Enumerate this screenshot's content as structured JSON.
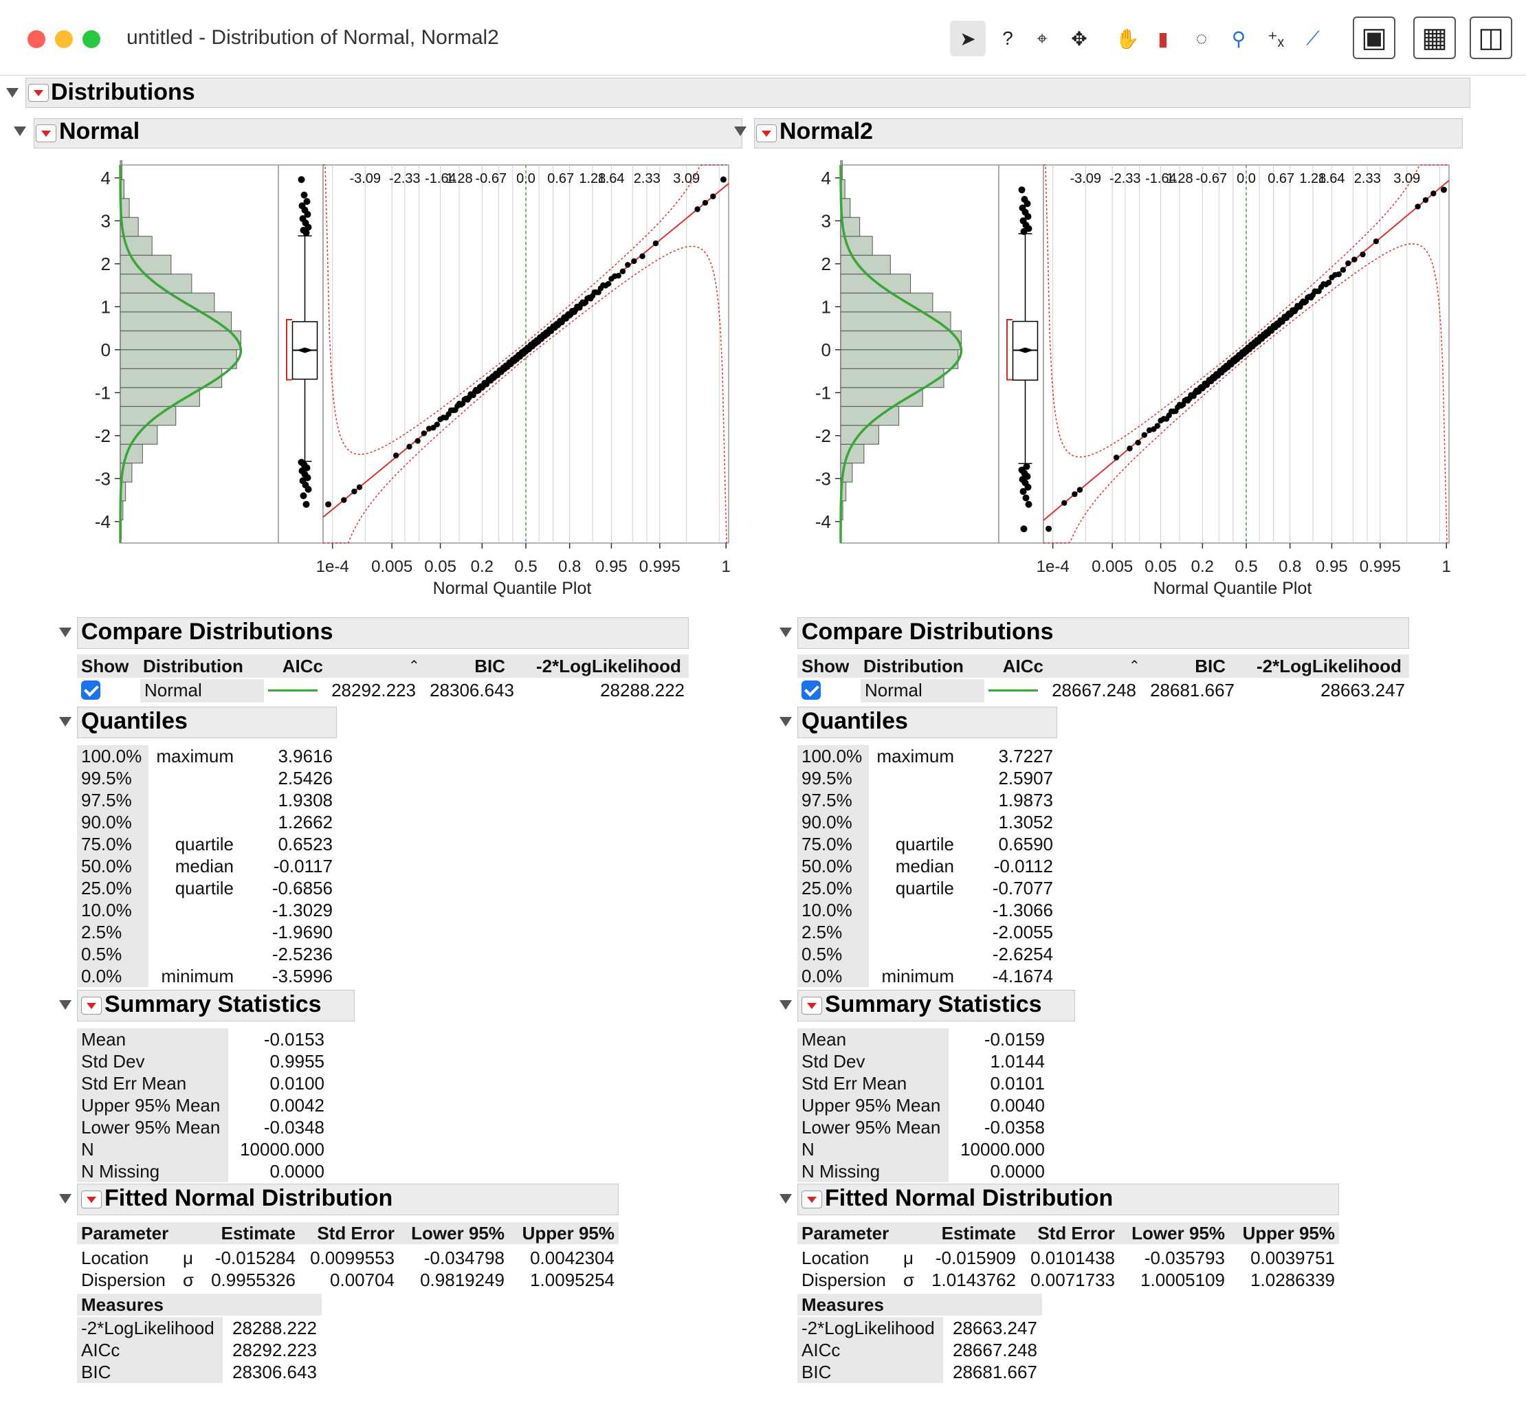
{
  "window": {
    "title": "untitled - Distribution of Normal, Normal2",
    "tools": [
      "arrow-icon",
      "help-icon",
      "crosshair-icon",
      "move-icon",
      "hand-icon",
      "brush-icon",
      "lasso-icon",
      "magnifier-icon",
      "annotate-icon",
      "ruler-icon",
      "jmp-home-icon",
      "data-table-icon",
      "layout-icon"
    ]
  },
  "distributions": {
    "title": "Distributions",
    "panels": [
      {
        "title": "Normal",
        "chart_data": {
          "type": "scatter",
          "title": "",
          "xlabel": "Normal Quantile Plot",
          "ylabel": "",
          "ylim": [
            -4.5,
            4.3
          ],
          "y_ticks": [
            "4",
            "3",
            "2",
            "1",
            "0",
            "-1",
            "-2",
            "-3",
            "-4"
          ],
          "x_bottom_ticks": [
            "1e-4",
            "0.005",
            "0.05",
            "0.2",
            "0.5",
            "0.8",
            "0.95",
            "0.995",
            "1"
          ],
          "x_top_ticks": [
            "-3.09",
            "-2.33",
            "-1.64",
            "1.28",
            "-0.67",
            "0.0",
            "0.67",
            "1.28",
            "1.64",
            "2.33",
            "3.09"
          ],
          "mean": -0.0153,
          "std_dev": 0.9955,
          "box": {
            "min": -2.6,
            "q1": -0.6856,
            "median": -0.0117,
            "q3": 0.6523,
            "max": 2.65
          },
          "outliers": [
            3.96,
            3.6,
            3.45,
            3.35,
            3.25,
            3.15,
            3.05,
            2.95,
            2.85,
            2.78,
            2.72,
            -2.62,
            -2.68,
            -2.75,
            -2.82,
            -2.9,
            -2.98,
            -3.05,
            -3.15,
            -3.25,
            -3.4,
            -3.6
          ],
          "histogram": [
            0.02,
            0.05,
            0.1,
            0.22,
            0.42,
            0.7,
            1.05,
            1.5,
            1.92,
            2.2,
            2.28,
            2.1,
            1.78,
            1.35,
            0.96,
            0.6,
            0.34,
            0.17,
            0.07,
            0.03
          ],
          "qq_range": [
            -3.5996,
            3.9616
          ]
        },
        "compare": {
          "title": "Compare Distributions",
          "headers": [
            "Show",
            "Distribution",
            "AICc",
            "BIC",
            "-2*LogLikelihood"
          ],
          "row": {
            "distribution": "Normal",
            "aicc": "28292.223",
            "bic": "28306.643",
            "loglik": "28288.222"
          }
        },
        "quantiles": {
          "title": "Quantiles",
          "rows": [
            [
              "100.0%",
              "maximum",
              "3.9616"
            ],
            [
              "99.5%",
              "",
              "2.5426"
            ],
            [
              "97.5%",
              "",
              "1.9308"
            ],
            [
              "90.0%",
              "",
              "1.2662"
            ],
            [
              "75.0%",
              "quartile",
              "0.6523"
            ],
            [
              "50.0%",
              "median",
              "-0.0117"
            ],
            [
              "25.0%",
              "quartile",
              "-0.6856"
            ],
            [
              "10.0%",
              "",
              "-1.3029"
            ],
            [
              "2.5%",
              "",
              "-1.9690"
            ],
            [
              "0.5%",
              "",
              "-2.5236"
            ],
            [
              "0.0%",
              "minimum",
              "-3.5996"
            ]
          ]
        },
        "summary": {
          "title": "Summary Statistics",
          "rows": [
            [
              "Mean",
              "-0.0153"
            ],
            [
              "Std Dev",
              "0.9955"
            ],
            [
              "Std Err Mean",
              "0.0100"
            ],
            [
              "Upper 95% Mean",
              "0.0042"
            ],
            [
              "Lower 95% Mean",
              "-0.0348"
            ],
            [
              "N",
              "10000.000"
            ],
            [
              "N Missing",
              "0.0000"
            ]
          ]
        },
        "fitted": {
          "title": "Fitted Normal Distribution",
          "headers": [
            "Parameter",
            "Estimate",
            "Std Error",
            "Lower 95%",
            "Upper 95%"
          ],
          "rows": [
            [
              "Location",
              "μ",
              "-0.015284",
              "0.0099553",
              "-0.034798",
              "0.0042304"
            ],
            [
              "Dispersion",
              "σ",
              "0.9955326",
              "0.00704",
              "0.9819249",
              "1.0095254"
            ]
          ],
          "measures_title": "Measures",
          "measures": [
            [
              "-2*LogLikelihood",
              "28288.222"
            ],
            [
              "AICc",
              "28292.223"
            ],
            [
              "BIC",
              "28306.643"
            ]
          ]
        }
      },
      {
        "title": "Normal2",
        "chart_data": {
          "type": "scatter",
          "title": "",
          "xlabel": "Normal Quantile Plot",
          "ylabel": "",
          "ylim": [
            -4.5,
            4.3
          ],
          "y_ticks": [
            "4",
            "3",
            "2",
            "1",
            "0",
            "-1",
            "-2",
            "-3",
            "-4"
          ],
          "x_bottom_ticks": [
            "1e-4",
            "0.005",
            "0.05",
            "0.2",
            "0.5",
            "0.8",
            "0.95",
            "0.995",
            "1"
          ],
          "x_top_ticks": [
            "-3.09",
            "-2.33",
            "-1.64",
            "1.28",
            "-0.67",
            "0.0",
            "0.67",
            "1.28",
            "1.64",
            "2.33",
            "3.09"
          ],
          "mean": -0.0159,
          "std_dev": 1.0144,
          "box": {
            "min": -2.65,
            "q1": -0.7077,
            "median": -0.0112,
            "q3": 0.659,
            "max": 2.7
          },
          "outliers": [
            3.72,
            3.5,
            3.4,
            3.3,
            3.2,
            3.1,
            3.0,
            2.9,
            2.82,
            2.75,
            -2.72,
            -2.8,
            -2.88,
            -2.95,
            -3.02,
            -3.1,
            -3.2,
            -3.3,
            -3.45,
            -3.6,
            -4.17
          ],
          "histogram": [
            0.01,
            0.04,
            0.1,
            0.22,
            0.44,
            0.72,
            1.1,
            1.55,
            1.95,
            2.22,
            2.28,
            2.08,
            1.74,
            1.32,
            0.94,
            0.6,
            0.36,
            0.18,
            0.08,
            0.03
          ],
          "qq_range": [
            -4.1674,
            3.7227
          ]
        },
        "compare": {
          "title": "Compare Distributions",
          "headers": [
            "Show",
            "Distribution",
            "AICc",
            "BIC",
            "-2*LogLikelihood"
          ],
          "row": {
            "distribution": "Normal",
            "aicc": "28667.248",
            "bic": "28681.667",
            "loglik": "28663.247"
          }
        },
        "quantiles": {
          "title": "Quantiles",
          "rows": [
            [
              "100.0%",
              "maximum",
              "3.7227"
            ],
            [
              "99.5%",
              "",
              "2.5907"
            ],
            [
              "97.5%",
              "",
              "1.9873"
            ],
            [
              "90.0%",
              "",
              "1.3052"
            ],
            [
              "75.0%",
              "quartile",
              "0.6590"
            ],
            [
              "50.0%",
              "median",
              "-0.0112"
            ],
            [
              "25.0%",
              "quartile",
              "-0.7077"
            ],
            [
              "10.0%",
              "",
              "-1.3066"
            ],
            [
              "2.5%",
              "",
              "-2.0055"
            ],
            [
              "0.5%",
              "",
              "-2.6254"
            ],
            [
              "0.0%",
              "minimum",
              "-4.1674"
            ]
          ]
        },
        "summary": {
          "title": "Summary Statistics",
          "rows": [
            [
              "Mean",
              "-0.0159"
            ],
            [
              "Std Dev",
              "1.0144"
            ],
            [
              "Std Err Mean",
              "0.0101"
            ],
            [
              "Upper 95% Mean",
              "0.0040"
            ],
            [
              "Lower 95% Mean",
              "-0.0358"
            ],
            [
              "N",
              "10000.000"
            ],
            [
              "N Missing",
              "0.0000"
            ]
          ]
        },
        "fitted": {
          "title": "Fitted Normal Distribution",
          "headers": [
            "Parameter",
            "Estimate",
            "Std Error",
            "Lower 95%",
            "Upper 95%"
          ],
          "rows": [
            [
              "Location",
              "μ",
              "-0.015909",
              "0.0101438",
              "-0.035793",
              "0.0039751"
            ],
            [
              "Dispersion",
              "σ",
              "1.0143762",
              "0.0071733",
              "1.0005109",
              "1.0286339"
            ]
          ],
          "measures_title": "Measures",
          "measures": [
            [
              "-2*LogLikelihood",
              "28663.247"
            ],
            [
              "AICc",
              "28667.248"
            ],
            [
              "BIC",
              "28681.667"
            ]
          ]
        }
      }
    ]
  },
  "colors": {
    "histogram_fill": "#c3d2c3",
    "normal_curve": "#3aa63a",
    "fit_line": "#e03030",
    "points": "#000000",
    "accent_check": "#1a73e8"
  }
}
